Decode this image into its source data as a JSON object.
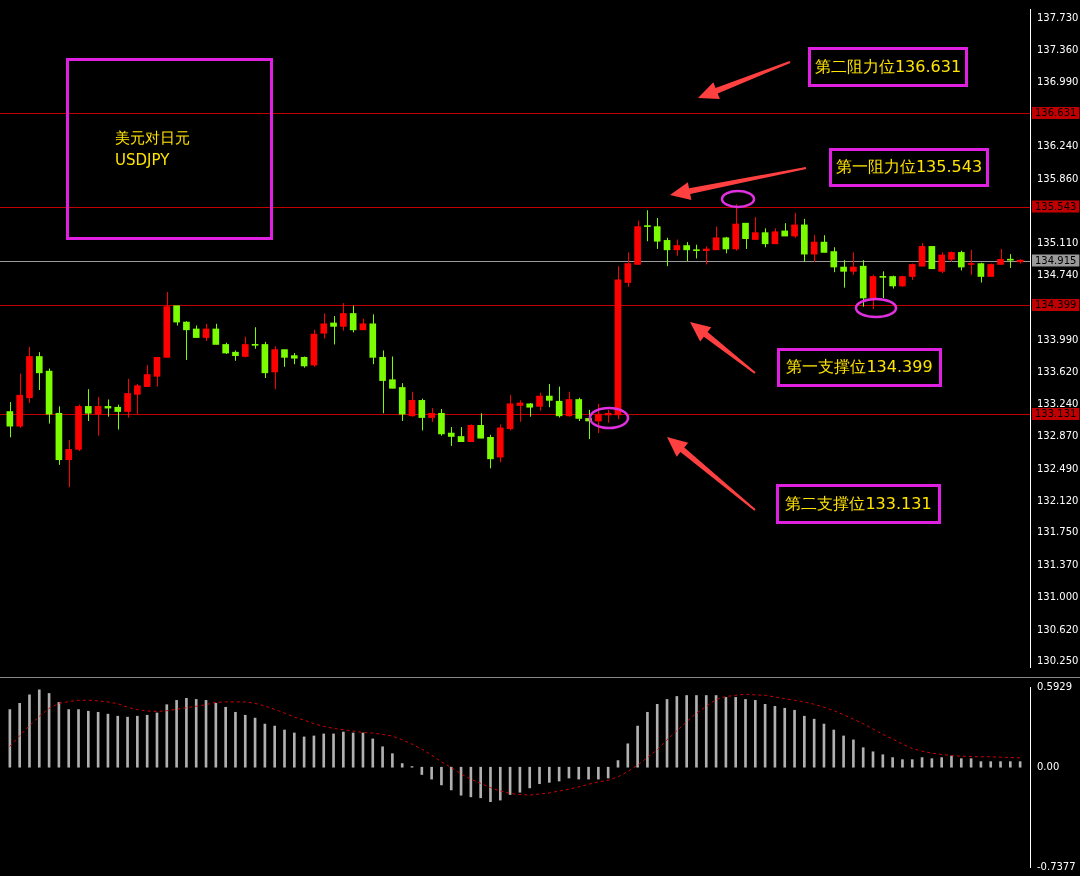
{
  "chart_data": [
    {
      "type": "candlestick",
      "title": "美元对日元",
      "subtitle": "USDJPY",
      "categories": [
        null,
        null,
        null,
        null,
        null,
        null,
        null,
        null,
        null,
        null,
        null,
        null,
        null,
        null,
        null,
        null,
        null,
        null,
        null,
        null,
        null,
        null,
        null,
        null,
        null,
        null,
        null,
        null,
        null,
        null,
        null,
        null,
        null,
        null,
        null,
        null,
        null,
        null,
        null,
        null,
        null,
        null,
        null,
        null,
        null,
        null,
        null,
        null,
        null,
        null,
        null,
        null,
        null,
        null,
        null,
        null,
        null,
        null,
        null,
        null,
        null,
        null,
        null,
        null,
        null,
        null,
        null,
        null,
        null,
        null,
        null,
        null,
        null,
        null,
        null,
        null,
        null,
        null,
        null,
        null,
        null,
        null,
        null,
        null,
        null,
        null,
        null,
        null,
        null,
        null,
        null,
        null,
        null,
        null,
        null,
        null,
        null,
        null,
        null,
        null,
        null,
        null,
        null,
        null
      ],
      "ohlc": [
        [
          133.16,
          133.27,
          132.86,
          132.99
        ],
        [
          132.99,
          133.6,
          132.97,
          133.35
        ],
        [
          133.32,
          133.91,
          133.26,
          133.8
        ],
        [
          133.8,
          133.85,
          133.41,
          133.61
        ],
        [
          133.63,
          133.66,
          133.02,
          133.13
        ],
        [
          133.14,
          133.22,
          132.54,
          132.6
        ],
        [
          132.6,
          132.83,
          132.28,
          132.72
        ],
        [
          132.72,
          133.24,
          132.7,
          133.22
        ],
        [
          133.22,
          133.42,
          133.05,
          133.14
        ],
        [
          133.13,
          133.33,
          132.88,
          133.22
        ],
        [
          133.22,
          133.3,
          133.1,
          133.2
        ],
        [
          133.21,
          133.24,
          132.95,
          133.16
        ],
        [
          133.16,
          133.54,
          133.09,
          133.37
        ],
        [
          133.36,
          133.48,
          133.13,
          133.46
        ],
        [
          133.45,
          133.7,
          133.45,
          133.59
        ],
        [
          133.57,
          133.79,
          133.45,
          133.79
        ],
        [
          133.79,
          134.55,
          133.79,
          134.38
        ],
        [
          134.39,
          134.39,
          134.16,
          134.2
        ],
        [
          134.2,
          134.21,
          133.76,
          134.11
        ],
        [
          134.12,
          134.16,
          134.02,
          134.02
        ],
        [
          134.02,
          134.18,
          133.98,
          134.12
        ],
        [
          134.12,
          134.18,
          133.94,
          133.94
        ],
        [
          133.94,
          133.96,
          133.83,
          133.84
        ],
        [
          133.85,
          133.87,
          133.75,
          133.81
        ],
        [
          133.8,
          134.03,
          133.79,
          133.94
        ],
        [
          133.94,
          134.14,
          133.89,
          133.93
        ],
        [
          133.94,
          133.97,
          133.55,
          133.61
        ],
        [
          133.62,
          133.92,
          133.42,
          133.88
        ],
        [
          133.88,
          133.88,
          133.68,
          133.79
        ],
        [
          133.81,
          133.84,
          133.71,
          133.78
        ],
        [
          133.79,
          133.8,
          133.67,
          133.69
        ],
        [
          133.7,
          134.11,
          133.68,
          134.06
        ],
        [
          134.07,
          134.3,
          134.01,
          134.18
        ],
        [
          134.19,
          134.27,
          133.94,
          134.15
        ],
        [
          134.15,
          134.42,
          134.1,
          134.3
        ],
        [
          134.3,
          134.39,
          134.08,
          134.11
        ],
        [
          134.11,
          134.24,
          134.11,
          134.18
        ],
        [
          134.18,
          134.29,
          133.71,
          133.79
        ],
        [
          133.79,
          133.87,
          133.14,
          133.52
        ],
        [
          133.53,
          133.8,
          133.43,
          133.43
        ],
        [
          133.44,
          133.49,
          133.05,
          133.13
        ],
        [
          133.11,
          133.39,
          133.1,
          133.29
        ],
        [
          133.29,
          133.31,
          132.94,
          133.09
        ],
        [
          133.09,
          133.2,
          133.04,
          133.14
        ],
        [
          133.14,
          133.19,
          132.88,
          132.9
        ],
        [
          132.91,
          132.98,
          132.76,
          132.87
        ],
        [
          132.87,
          132.98,
          132.81,
          132.81
        ],
        [
          132.81,
          133.01,
          132.81,
          133.0
        ],
        [
          133.0,
          133.14,
          132.85,
          132.85
        ],
        [
          132.86,
          132.89,
          132.5,
          132.61
        ],
        [
          132.63,
          133.01,
          132.57,
          132.97
        ],
        [
          132.96,
          133.35,
          132.94,
          133.25
        ],
        [
          133.23,
          133.29,
          133.04,
          133.26
        ],
        [
          133.25,
          133.26,
          133.1,
          133.21
        ],
        [
          133.22,
          133.38,
          133.17,
          133.34
        ],
        [
          133.34,
          133.48,
          133.21,
          133.29
        ],
        [
          133.28,
          133.45,
          133.09,
          133.11
        ],
        [
          133.11,
          133.39,
          133.1,
          133.3
        ],
        [
          133.3,
          133.32,
          133.05,
          133.08
        ],
        [
          133.08,
          133.18,
          132.84,
          133.05
        ],
        [
          133.05,
          133.25,
          132.91,
          133.13
        ],
        [
          133.12,
          133.18,
          133.03,
          133.14
        ],
        [
          133.12,
          134.85,
          133.07,
          134.69
        ],
        [
          134.66,
          135.01,
          134.61,
          134.88
        ],
        [
          134.87,
          135.38,
          134.87,
          135.31
        ],
        [
          135.32,
          135.5,
          135.14,
          135.31
        ],
        [
          135.31,
          135.41,
          135.05,
          135.14
        ],
        [
          135.15,
          135.18,
          134.85,
          135.04
        ],
        [
          135.04,
          135.16,
          134.97,
          135.09
        ],
        [
          135.09,
          135.13,
          134.91,
          135.04
        ],
        [
          135.04,
          135.1,
          134.94,
          135.03
        ],
        [
          135.03,
          135.08,
          134.87,
          135.05
        ],
        [
          135.04,
          135.31,
          135.04,
          135.18
        ],
        [
          135.18,
          135.19,
          135.0,
          135.05
        ],
        [
          135.05,
          135.57,
          135.03,
          135.34
        ],
        [
          135.35,
          135.35,
          135.05,
          135.17
        ],
        [
          135.16,
          135.42,
          135.16,
          135.24
        ],
        [
          135.24,
          135.29,
          135.07,
          135.11
        ],
        [
          135.11,
          135.29,
          135.11,
          135.25
        ],
        [
          135.26,
          135.35,
          135.2,
          135.2
        ],
        [
          135.2,
          135.47,
          135.18,
          135.33
        ],
        [
          135.33,
          135.4,
          134.9,
          134.99
        ],
        [
          134.99,
          135.21,
          134.9,
          135.13
        ],
        [
          135.13,
          135.21,
          135.01,
          135.01
        ],
        [
          135.02,
          135.07,
          134.78,
          134.84
        ],
        [
          134.84,
          134.92,
          134.6,
          134.79
        ],
        [
          134.79,
          135.01,
          134.75,
          134.84
        ],
        [
          134.85,
          134.92,
          134.38,
          134.48
        ],
        [
          134.48,
          134.75,
          134.35,
          134.73
        ],
        [
          134.73,
          134.79,
          134.48,
          134.72
        ],
        [
          134.73,
          134.74,
          134.59,
          134.62
        ],
        [
          134.62,
          134.74,
          134.61,
          134.73
        ],
        [
          134.73,
          134.88,
          134.69,
          134.87
        ],
        [
          134.85,
          135.12,
          134.85,
          135.08
        ],
        [
          135.08,
          135.08,
          134.82,
          134.82
        ],
        [
          134.79,
          135.01,
          134.77,
          134.98
        ],
        [
          134.93,
          135.02,
          134.9,
          135.01
        ],
        [
          135.01,
          135.03,
          134.8,
          134.84
        ],
        [
          134.87,
          135.04,
          134.75,
          134.88
        ],
        [
          134.88,
          134.89,
          134.66,
          134.73
        ],
        [
          134.73,
          134.88,
          134.73,
          134.87
        ],
        [
          134.87,
          135.05,
          134.87,
          134.93
        ],
        [
          134.93,
          134.99,
          134.83,
          134.92
        ],
        [
          134.9,
          134.93,
          134.88,
          134.92
        ]
      ],
      "ylim": [
        130.19,
        137.84
      ],
      "yticks": [
        {
          "value": 137.73,
          "label": "137.730"
        },
        {
          "value": 137.36,
          "label": "137.360"
        },
        {
          "value": 136.99,
          "label": "136.990"
        },
        {
          "value": 136.24,
          "label": "136.240"
        },
        {
          "value": 135.86,
          "label": "135.860"
        },
        {
          "value": 135.11,
          "label": "135.110"
        },
        {
          "value": 134.74,
          "label": "134.740"
        },
        {
          "value": 133.99,
          "label": "133.990"
        },
        {
          "value": 133.62,
          "label": "133.620"
        },
        {
          "value": 133.24,
          "label": "133.240"
        },
        {
          "value": 132.87,
          "label": "132.870"
        },
        {
          "value": 132.49,
          "label": "132.490"
        },
        {
          "value": 132.12,
          "label": "132.120"
        },
        {
          "value": 131.75,
          "label": "131.750"
        },
        {
          "value": 131.37,
          "label": "131.370"
        },
        {
          "value": 131.0,
          "label": "131.000"
        },
        {
          "value": 130.62,
          "label": "130.620"
        },
        {
          "value": 130.25,
          "label": "130.250"
        }
      ],
      "ref_lines": [
        {
          "axis": "y",
          "value": 136.631,
          "label": "136.631",
          "color": "#c00000"
        },
        {
          "axis": "y",
          "value": 135.543,
          "label": "135.543",
          "color": "#c00000"
        },
        {
          "axis": "y",
          "value": 134.915,
          "label": "134.915",
          "color": "#9a9a9a"
        },
        {
          "axis": "y",
          "value": 134.399,
          "label": "134.399",
          "color": "#c00000"
        },
        {
          "axis": "y",
          "value": 133.131,
          "label": "133.131",
          "color": "#c00000"
        }
      ],
      "annotations": [
        "第二阻力位136.631",
        "第一阻力位135.543",
        "第一支撑位134.399",
        "第二支撑位133.131"
      ],
      "grid": false,
      "legend": false,
      "tick_labels": "y"
    },
    {
      "type": "bar",
      "categories": [
        null,
        null,
        null,
        null,
        null,
        null,
        null,
        null,
        null,
        null,
        null,
        null,
        null,
        null,
        null,
        null,
        null,
        null,
        null,
        null,
        null,
        null,
        null,
        null,
        null,
        null,
        null,
        null,
        null,
        null,
        null,
        null,
        null,
        null,
        null,
        null,
        null,
        null,
        null,
        null,
        null,
        null,
        null,
        null,
        null,
        null,
        null,
        null,
        null,
        null,
        null,
        null,
        null,
        null,
        null,
        null,
        null,
        null,
        null,
        null,
        null,
        null,
        null,
        null,
        null,
        null,
        null,
        null,
        null,
        null,
        null,
        null,
        null,
        null,
        null,
        null,
        null,
        null,
        null,
        null,
        null,
        null,
        null,
        null,
        null,
        null,
        null,
        null,
        null,
        null,
        null,
        null,
        null,
        null,
        null,
        null,
        null,
        null,
        null,
        null,
        null,
        null,
        null,
        null
      ],
      "color": "#b0b0b0",
      "values": [
        0.426,
        0.472,
        0.535,
        0.572,
        0.545,
        0.479,
        0.426,
        0.426,
        0.414,
        0.406,
        0.392,
        0.377,
        0.37,
        0.377,
        0.384,
        0.401,
        0.462,
        0.494,
        0.509,
        0.501,
        0.494,
        0.472,
        0.443,
        0.406,
        0.384,
        0.363,
        0.319,
        0.304,
        0.275,
        0.253,
        0.224,
        0.231,
        0.246,
        0.246,
        0.26,
        0.253,
        0.253,
        0.209,
        0.151,
        0.1,
        0.027,
        0.005,
        -0.054,
        -0.088,
        -0.131,
        -0.168,
        -0.207,
        -0.219,
        -0.226,
        -0.255,
        -0.243,
        -0.202,
        -0.185,
        -0.153,
        -0.122,
        -0.112,
        -0.102,
        -0.08,
        -0.088,
        -0.088,
        -0.088,
        -0.08,
        0.049,
        0.173,
        0.304,
        0.406,
        0.465,
        0.501,
        0.523,
        0.53,
        0.53,
        0.53,
        0.53,
        0.516,
        0.516,
        0.501,
        0.494,
        0.465,
        0.45,
        0.436,
        0.421,
        0.377,
        0.355,
        0.319,
        0.275,
        0.231,
        0.202,
        0.144,
        0.114,
        0.092,
        0.071,
        0.056,
        0.056,
        0.071,
        0.063,
        0.071,
        0.083,
        0.063,
        0.063,
        0.041,
        0.041,
        0.041,
        0.041,
        0.041
      ],
      "ylim": [
        -0.7377,
        0.5929
      ],
      "yticks": [
        0.5929,
        {
          "value": 0,
          "label": "0.00"
        },
        -0.7377
      ],
      "grid": false,
      "legend": false,
      "tick_labels": "y"
    },
    {
      "type": "line",
      "color": "#d00000",
      "line_style": "dashed",
      "categories": [
        null,
        null,
        null,
        null,
        null,
        null,
        null,
        null,
        null,
        null,
        null,
        null,
        null,
        null,
        null,
        null,
        null,
        null,
        null,
        null,
        null,
        null,
        null,
        null,
        null,
        null,
        null,
        null,
        null,
        null,
        null,
        null,
        null,
        null,
        null,
        null,
        null,
        null,
        null,
        null,
        null,
        null,
        null,
        null,
        null,
        null,
        null,
        null,
        null,
        null,
        null,
        null,
        null,
        null,
        null,
        null,
        null,
        null,
        null,
        null,
        null,
        null,
        null,
        null,
        null,
        null,
        null,
        null,
        null,
        null,
        null,
        null,
        null,
        null,
        null,
        null,
        null,
        null,
        null,
        null,
        null,
        null,
        null,
        null,
        null,
        null,
        null,
        null,
        null,
        null,
        null,
        null,
        null,
        null,
        null,
        null,
        null,
        null,
        null,
        null,
        null,
        null,
        null,
        null
      ],
      "values": [
        0.146,
        0.224,
        0.297,
        0.365,
        0.423,
        0.46,
        0.472,
        0.482,
        0.482,
        0.477,
        0.47,
        0.457,
        0.431,
        0.414,
        0.404,
        0.401,
        0.406,
        0.416,
        0.428,
        0.438,
        0.45,
        0.467,
        0.47,
        0.47,
        0.47,
        0.46,
        0.44,
        0.416,
        0.389,
        0.36,
        0.338,
        0.311,
        0.292,
        0.277,
        0.268,
        0.258,
        0.248,
        0.243,
        0.234,
        0.221,
        0.195,
        0.163,
        0.127,
        0.083,
        0.034,
        -0.007,
        -0.054,
        -0.092,
        -0.122,
        -0.153,
        -0.178,
        -0.195,
        -0.204,
        -0.207,
        -0.2,
        -0.192,
        -0.178,
        -0.165,
        -0.148,
        -0.129,
        -0.112,
        -0.1,
        -0.075,
        -0.036,
        0.01,
        0.066,
        0.122,
        0.195,
        0.26,
        0.326,
        0.387,
        0.438,
        0.487,
        0.509,
        0.518,
        0.526,
        0.521,
        0.518,
        0.506,
        0.494,
        0.482,
        0.47,
        0.453,
        0.431,
        0.406,
        0.377,
        0.345,
        0.311,
        0.273,
        0.234,
        0.2,
        0.163,
        0.131,
        0.112,
        0.097,
        0.088,
        0.08,
        0.075,
        0.073,
        0.071,
        0.071,
        0.068,
        0.066,
        0.063
      ],
      "ylim": [
        -0.7377,
        0.5929
      ],
      "marker": "none",
      "grid": false,
      "legend": false,
      "tick_labels": false
    }
  ]
}
